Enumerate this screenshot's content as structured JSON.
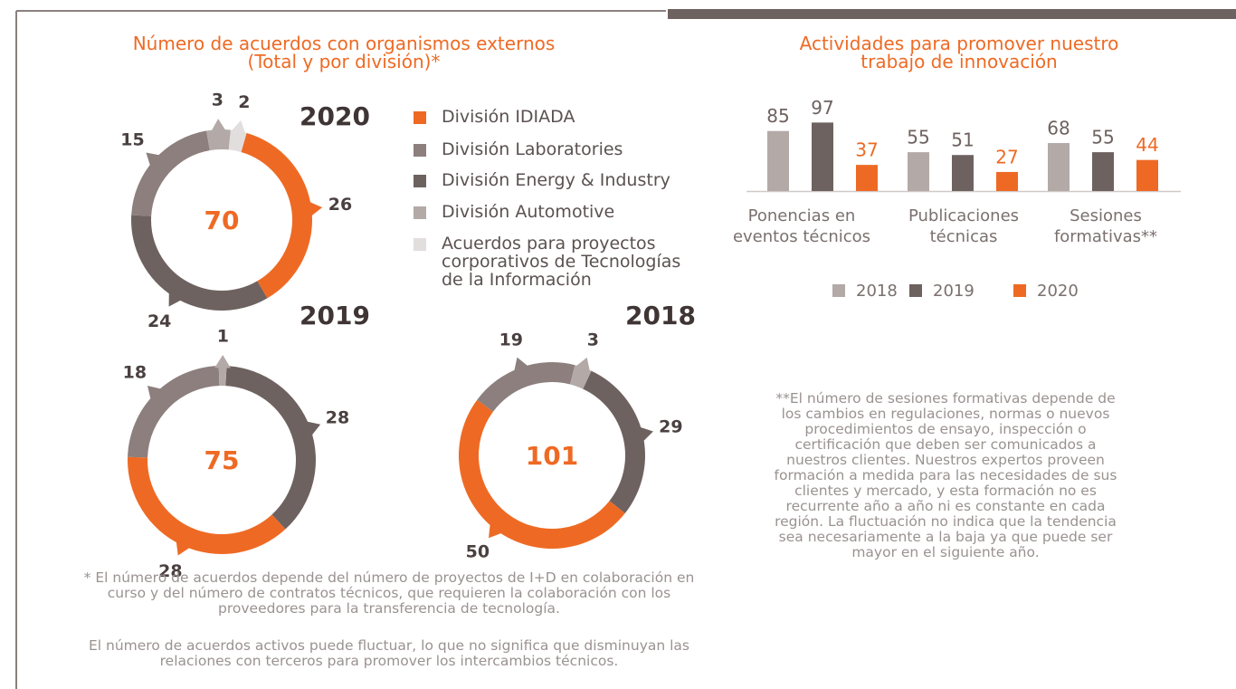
{
  "chart_data": [
    {
      "type": "donut",
      "title": "Número de acuerdos con organismos externos",
      "subtitle": "(Total y por división)*",
      "categories": [
        "2020",
        "2019",
        "2018"
      ],
      "totals": [
        70,
        75,
        101
      ],
      "series": [
        {
          "name": "División IDIADA",
          "color": "#ee6a24",
          "values": [
            26,
            28,
            50
          ]
        },
        {
          "name": "División Laboratories",
          "color": "#8c7f7d",
          "values": [
            15,
            18,
            19
          ]
        },
        {
          "name": "División Energy & Industry",
          "color": "#6e6260",
          "values": [
            24,
            28,
            29
          ]
        },
        {
          "name": "División Automotive",
          "color": "#b3aaa8",
          "values": [
            3,
            1,
            3
          ]
        },
        {
          "name": "Acuerdos para proyectos corporativos de Tecnologías de la Información",
          "color": "#e2dedd",
          "values": [
            2,
            null,
            null
          ]
        }
      ],
      "notes": [
        "* El número de acuerdos depende del número de proyectos de I+D en colaboración en curso y del número de contratos técnicos, que requieren la colaboración con los proveedores para la transferencia de tecnología.",
        "El número de acuerdos activos puede fluctuar, lo que no significa que disminuyan las relaciones con terceros para promover los intercambios técnicos."
      ]
    },
    {
      "type": "bar",
      "title": "Actividades para promover nuestro trabajo de innovación",
      "categories": [
        "Ponencias en eventos técnicos",
        "Publicaciones técnicas",
        "Sesiones formativas**"
      ],
      "series": [
        {
          "name": "2018",
          "color": "#b3aaa8",
          "values": [
            85,
            55,
            68
          ]
        },
        {
          "name": "2019",
          "color": "#6e6260",
          "values": [
            97,
            51,
            55
          ]
        },
        {
          "name": "2020",
          "color": "#ee6a24",
          "values": [
            37,
            27,
            44
          ]
        }
      ],
      "notes": [
        "**El número de sesiones formativas depende de los cambios en regulaciones, normas o nuevos procedimientos de ensayo, inspección o certificación que deben ser comunicados a nuestros clientes. Nuestros expertos proveen formación a medida para las necesidades de sus clientes y mercado, y esta formación no es recurrente año a año ni es constante en cada región.  La fluctuación no indica que la tendencia sea necesariamente a la baja ya que puede ser mayor en el siguiente año."
      ]
    }
  ]
}
